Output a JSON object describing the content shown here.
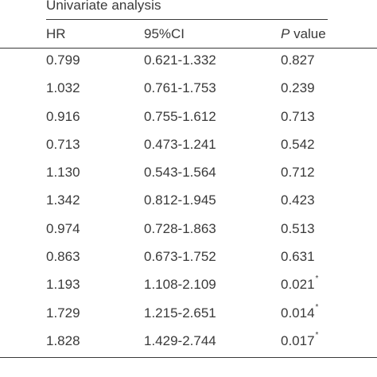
{
  "table": {
    "caption": "Univariate analysis",
    "headers": {
      "hr": "HR",
      "ci": "95%CI",
      "p_italic": "P",
      "p_rest": " value"
    },
    "rows": [
      {
        "hr": "0.799",
        "ci": "0.621-1.332",
        "p": "0.827",
        "sig": ""
      },
      {
        "hr": "1.032",
        "ci": "0.761-1.753",
        "p": "0.239",
        "sig": ""
      },
      {
        "hr": "0.916",
        "ci": "0.755-1.612",
        "p": "0.713",
        "sig": ""
      },
      {
        "hr": "0.713",
        "ci": "0.473-1.241",
        "p": "0.542",
        "sig": ""
      },
      {
        "hr": "1.130",
        "ci": "0.543-1.564",
        "p": "0.712",
        "sig": ""
      },
      {
        "hr": "1.342",
        "ci": "0.812-1.945",
        "p": "0.423",
        "sig": ""
      },
      {
        "hr": "0.974",
        "ci": "0.728-1.863",
        "p": "0.513",
        "sig": ""
      },
      {
        "hr": "0.863",
        "ci": "0.673-1.752",
        "p": "0.631",
        "sig": ""
      },
      {
        "hr": "1.193",
        "ci": "1.108-2.109",
        "p": "0.021",
        "sig": "*"
      },
      {
        "hr": "1.729",
        "ci": "1.215-2.651",
        "p": "0.014",
        "sig": "*"
      },
      {
        "hr": "1.828",
        "ci": "1.429-2.744",
        "p": "0.017",
        "sig": "*"
      }
    ]
  }
}
